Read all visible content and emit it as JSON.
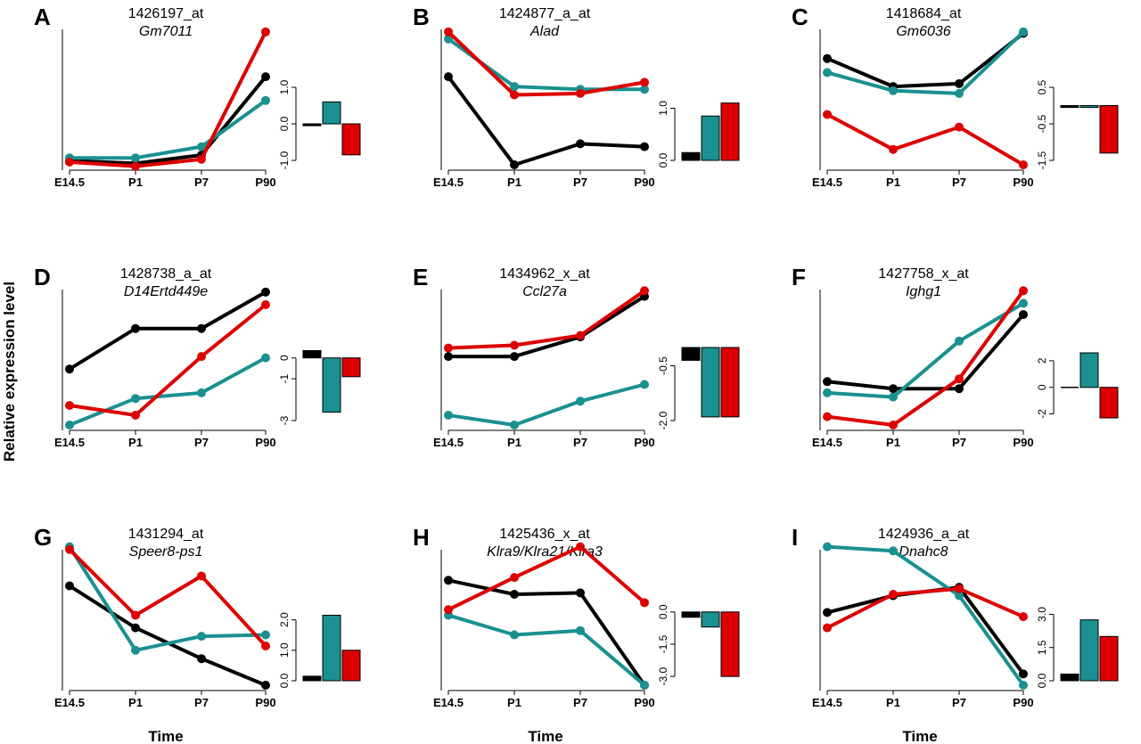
{
  "figure": {
    "ylabel": "Relative expression level",
    "xlabel": "Time",
    "series_colors": [
      "#000000",
      "#1a9090",
      "#dd0000"
    ]
  },
  "chart_data": [
    {
      "type": "line",
      "panel": "A",
      "probe": "1426197_at",
      "gene": "Gm7011",
      "categories": [
        "E14.5",
        "P1",
        "P7",
        "P90"
      ],
      "ylim": [
        0,
        10
      ],
      "series": [
        {
          "values": [
            0.3,
            0.1,
            0.7,
            6.3
          ]
        },
        {
          "values": [
            0.5,
            0.5,
            1.3,
            4.6
          ]
        },
        {
          "values": [
            0.2,
            -0.1,
            0.4,
            9.5
          ]
        }
      ],
      "bar": {
        "type": "bar",
        "values": [
          -0.05,
          0.6,
          -0.85
        ],
        "ylim": [
          -1.0,
          1.0
        ],
        "ticks": [
          "1.0",
          "0.0",
          "-1.0"
        ],
        "tick_values": [
          1.0,
          0.0,
          -1.0
        ]
      }
    },
    {
      "type": "line",
      "panel": "B",
      "probe": "1424877_a_at",
      "gene": "Alad",
      "categories": [
        "E14.5",
        "P1",
        "P7",
        "P90"
      ],
      "ylim": [
        0,
        10
      ],
      "series": [
        {
          "values": [
            6.3,
            0.0,
            1.5,
            1.3
          ]
        },
        {
          "values": [
            9.0,
            5.6,
            5.4,
            5.4
          ]
        },
        {
          "values": [
            9.5,
            5.0,
            5.1,
            5.9
          ]
        }
      ],
      "bar": {
        "type": "bar",
        "values": [
          0.15,
          0.85,
          1.1
        ],
        "ylim": [
          0.0,
          1.4
        ],
        "ticks": [
          "0.0",
          "1.0"
        ],
        "tick_values": [
          0.0,
          1.0
        ]
      }
    },
    {
      "type": "line",
      "panel": "C",
      "probe": "1418684_at",
      "gene": "Gm6036",
      "categories": [
        "E14.5",
        "P1",
        "P7",
        "P90"
      ],
      "ylim": [
        0,
        10
      ],
      "series": [
        {
          "values": [
            7.6,
            5.6,
            5.8,
            9.4
          ]
        },
        {
          "values": [
            6.6,
            5.3,
            5.1,
            9.5
          ]
        },
        {
          "values": [
            3.6,
            1.1,
            2.7,
            0.0
          ]
        }
      ],
      "bar": {
        "type": "bar",
        "values": [
          -0.05,
          -0.05,
          -1.3
        ],
        "ylim": [
          -1.5,
          0.5
        ],
        "ticks": [
          "0.5",
          "-0.5",
          "-1.5"
        ],
        "tick_values": [
          0.5,
          -0.5,
          -1.5
        ]
      }
    },
    {
      "type": "line",
      "panel": "D",
      "probe": "1428738_a_at",
      "gene": "D14Ertd449e",
      "categories": [
        "E14.5",
        "P1",
        "P7",
        "P90"
      ],
      "ylim": [
        0,
        10
      ],
      "series": [
        {
          "values": [
            4.0,
            6.9,
            6.9,
            9.5
          ]
        },
        {
          "values": [
            0.0,
            1.9,
            2.3,
            4.8
          ]
        },
        {
          "values": [
            1.4,
            0.7,
            4.9,
            8.6
          ]
        }
      ],
      "bar": {
        "type": "bar",
        "values": [
          0.35,
          -2.6,
          -0.9
        ],
        "ylim": [
          -3.0,
          0.5
        ],
        "ticks": [
          "0",
          "-1",
          "-3"
        ],
        "tick_values": [
          0,
          -1,
          -3
        ]
      }
    },
    {
      "type": "line",
      "panel": "E",
      "probe": "1434962_x_at",
      "gene": "Ccl27a",
      "categories": [
        "E14.5",
        "P1",
        "P7",
        "P90"
      ],
      "ylim": [
        0,
        10
      ],
      "series": [
        {
          "values": [
            4.9,
            4.9,
            6.3,
            9.2
          ]
        },
        {
          "values": [
            0.7,
            0.0,
            1.7,
            2.9
          ]
        },
        {
          "values": [
            5.5,
            5.7,
            6.4,
            9.6
          ]
        }
      ],
      "bar": {
        "type": "bar",
        "values": [
          -0.35,
          -1.9,
          -1.9
        ],
        "ylim": [
          -2.0,
          0.0
        ],
        "ticks": [
          "-0.5",
          "-2.0"
        ],
        "tick_values": [
          -0.5,
          -2.0
        ]
      }
    },
    {
      "type": "line",
      "panel": "F",
      "probe": "1427758_x_at",
      "gene": "Ighg1",
      "categories": [
        "E14.5",
        "P1",
        "P7",
        "P90"
      ],
      "ylim": [
        0,
        10
      ],
      "series": [
        {
          "values": [
            3.1,
            2.6,
            2.6,
            7.9
          ]
        },
        {
          "values": [
            2.3,
            2.0,
            6.0,
            8.7
          ]
        },
        {
          "values": [
            0.6,
            0.0,
            3.3,
            9.6
          ]
        }
      ],
      "bar": {
        "type": "bar",
        "values": [
          0.0,
          2.6,
          -2.3
        ],
        "ylim": [
          -2.5,
          3.0
        ],
        "ticks": [
          "2",
          "0",
          "-2"
        ],
        "tick_values": [
          2,
          0,
          -2
        ]
      }
    },
    {
      "type": "line",
      "panel": "G",
      "probe": "1431294_at",
      "gene": "Speer8-ps1",
      "categories": [
        "E14.5",
        "P1",
        "P7",
        "P90"
      ],
      "ylim": [
        0,
        10
      ],
      "series": [
        {
          "values": [
            7.1,
            4.1,
            1.9,
            0.0
          ]
        },
        {
          "values": [
            9.9,
            2.5,
            3.5,
            3.6
          ]
        },
        {
          "values": [
            9.7,
            5.0,
            7.8,
            2.8
          ]
        }
      ],
      "bar": {
        "type": "bar",
        "values": [
          0.15,
          2.15,
          1.0
        ],
        "ylim": [
          0.0,
          2.4
        ],
        "ticks": [
          "0.0",
          "1.0",
          "2.0"
        ],
        "tick_values": [
          0.0,
          1.0,
          2.0
        ]
      }
    },
    {
      "type": "line",
      "panel": "H",
      "probe": "1425436_x_at",
      "gene": "Klra9/Klra21/Klra3",
      "categories": [
        "E14.5",
        "P1",
        "P7",
        "P90"
      ],
      "ylim": [
        0,
        10
      ],
      "series": [
        {
          "values": [
            7.5,
            6.5,
            6.6,
            0.0
          ]
        },
        {
          "values": [
            5.0,
            3.6,
            3.9,
            0.0
          ]
        },
        {
          "values": [
            5.4,
            7.7,
            9.9,
            5.9
          ]
        }
      ],
      "bar": {
        "type": "bar",
        "values": [
          -0.25,
          -0.7,
          -3.0
        ],
        "ylim": [
          -3.2,
          0.2
        ],
        "ticks": [
          "0.0",
          "-1.5",
          "-3.0"
        ],
        "tick_values": [
          0.0,
          -1.5,
          -3.0
        ]
      }
    },
    {
      "type": "line",
      "panel": "I",
      "probe": "1424936_a_at",
      "gene": "Dnahc8",
      "categories": [
        "E14.5",
        "P1",
        "P7",
        "P90"
      ],
      "ylim": [
        0,
        10
      ],
      "series": [
        {
          "values": [
            5.2,
            6.4,
            7.0,
            0.8
          ]
        },
        {
          "values": [
            9.9,
            9.6,
            6.4,
            0.0
          ]
        },
        {
          "values": [
            4.1,
            6.5,
            6.9,
            4.9
          ]
        }
      ],
      "bar": {
        "type": "bar",
        "values": [
          0.3,
          2.75,
          2.0
        ],
        "ylim": [
          0.0,
          3.3
        ],
        "ticks": [
          "0.0",
          "1.5",
          "3.0"
        ],
        "tick_values": [
          0.0,
          1.5,
          3.0
        ]
      }
    }
  ]
}
